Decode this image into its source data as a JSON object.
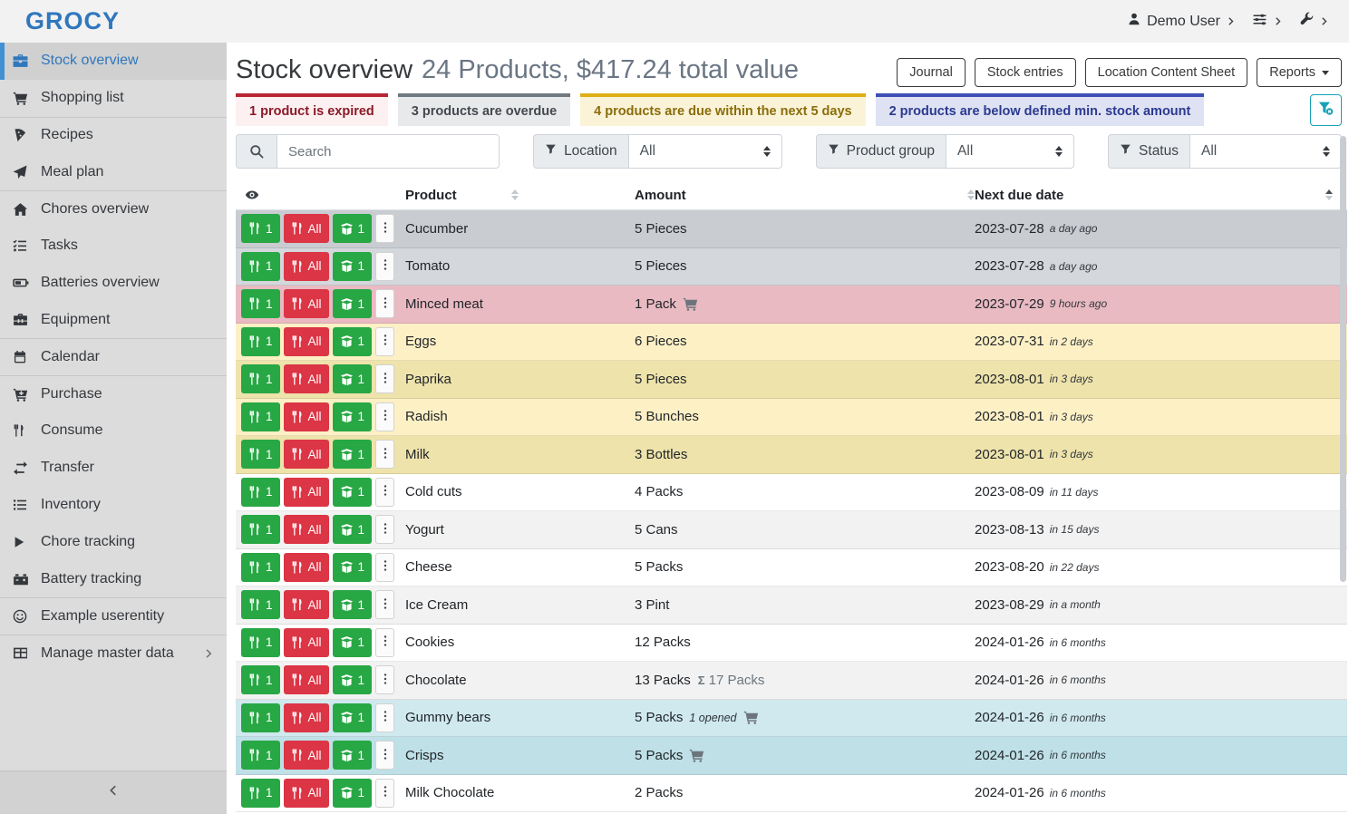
{
  "app": {
    "logo_text": "GROCY"
  },
  "topbar": {
    "user_label": "Demo User"
  },
  "sidebar": {
    "items": [
      {
        "label": "Stock overview",
        "icon": "stock-box",
        "selected": true
      },
      {
        "label": "Shopping list",
        "icon": "shopping-cart"
      },
      {
        "label": "Recipes",
        "icon": "pizza",
        "divider": true
      },
      {
        "label": "Meal plan",
        "icon": "paper-plane"
      },
      {
        "label": "Chores overview",
        "icon": "home",
        "divider": true
      },
      {
        "label": "Tasks",
        "icon": "tasks"
      },
      {
        "label": "Batteries overview",
        "icon": "battery"
      },
      {
        "label": "Equipment",
        "icon": "toolbox"
      },
      {
        "label": "Calendar",
        "icon": "calendar",
        "divider": true
      },
      {
        "label": "Purchase",
        "icon": "cart-plus",
        "divider": true
      },
      {
        "label": "Consume",
        "icon": "utensils"
      },
      {
        "label": "Transfer",
        "icon": "exchange"
      },
      {
        "label": "Inventory",
        "icon": "list"
      },
      {
        "label": "Chore tracking",
        "icon": "play"
      },
      {
        "label": "Battery tracking",
        "icon": "car-battery"
      },
      {
        "label": "Example userentity",
        "icon": "smiley",
        "divider": true
      },
      {
        "label": "Manage master data",
        "icon": "table",
        "divider": true,
        "chevron": true
      }
    ]
  },
  "header": {
    "title": "Stock overview",
    "subtitle": "24 Products, $417.24 total value",
    "buttons": [
      {
        "label": "Journal"
      },
      {
        "label": "Stock entries"
      },
      {
        "label": "Location Content Sheet"
      }
    ],
    "reports_label": "Reports"
  },
  "banners": [
    {
      "text": "1 product is expired",
      "type": "expired"
    },
    {
      "text": "3 products are overdue",
      "type": "overdue"
    },
    {
      "text": "4 products are due within the next 5 days",
      "type": "duesoon"
    },
    {
      "text": "2 products are below defined min. stock amount",
      "type": "belowmin"
    }
  ],
  "filters": {
    "search_placeholder": "Search",
    "groups": [
      {
        "label": "Location",
        "value": "All"
      },
      {
        "label": "Product group",
        "value": "All"
      },
      {
        "label": "Status",
        "value": "All"
      }
    ]
  },
  "table": {
    "columns": [
      {
        "label": "Product"
      },
      {
        "label": "Amount"
      },
      {
        "label": "Next due date"
      }
    ],
    "row_buttons": {
      "consume_one": "1",
      "consume_all": "All",
      "open_one": "1"
    },
    "rows": [
      {
        "product": "Cucumber",
        "amount": "5 Pieces",
        "due": "2023-07-28",
        "ago": "a day ago",
        "variant": "overdue-dark"
      },
      {
        "product": "Tomato",
        "amount": "5 Pieces",
        "due": "2023-07-28",
        "ago": "a day ago",
        "variant": "overdue-light"
      },
      {
        "product": "Minced meat",
        "amount": "1 Pack",
        "cart": true,
        "due": "2023-07-29",
        "ago": "9 hours ago",
        "variant": "expired"
      },
      {
        "product": "Eggs",
        "amount": "6 Pieces",
        "due": "2023-07-31",
        "ago": "in 2 days",
        "variant": "due-light"
      },
      {
        "product": "Paprika",
        "amount": "5 Pieces",
        "due": "2023-08-01",
        "ago": "in 3 days",
        "variant": "due-dark"
      },
      {
        "product": "Radish",
        "amount": "5 Bunches",
        "due": "2023-08-01",
        "ago": "in 3 days",
        "variant": "due-light"
      },
      {
        "product": "Milk",
        "amount": "3 Bottles",
        "due": "2023-08-01",
        "ago": "in 3 days",
        "variant": "due-dark"
      },
      {
        "product": "Cold cuts",
        "amount": "4 Packs",
        "due": "2023-08-09",
        "ago": "in 11 days",
        "variant": "plain"
      },
      {
        "product": "Yogurt",
        "amount": "5 Cans",
        "due": "2023-08-13",
        "ago": "in 15 days",
        "variant": "stripe"
      },
      {
        "product": "Cheese",
        "amount": "5 Packs",
        "due": "2023-08-20",
        "ago": "in 22 days",
        "variant": "plain"
      },
      {
        "product": "Ice Cream",
        "amount": "3 Pint",
        "due": "2023-08-29",
        "ago": "in a month",
        "variant": "stripe"
      },
      {
        "product": "Cookies",
        "amount": "12 Packs",
        "due": "2024-01-26",
        "ago": "in 6 months",
        "variant": "plain"
      },
      {
        "product": "Chocolate",
        "amount": "13 Packs",
        "sum": "17 Packs",
        "due": "2024-01-26",
        "ago": "in 6 months",
        "variant": "stripe"
      },
      {
        "product": "Gummy bears",
        "amount": "5 Packs",
        "opened": "1 opened",
        "cart": true,
        "due": "2024-01-26",
        "ago": "in 6 months",
        "variant": "min-light"
      },
      {
        "product": "Crisps",
        "amount": "5 Packs",
        "cart": true,
        "due": "2024-01-26",
        "ago": "in 6 months",
        "variant": "min-dark"
      },
      {
        "product": "Milk Chocolate",
        "amount": "2 Packs",
        "due": "2024-01-26",
        "ago": "in 6 months",
        "variant": "plain"
      }
    ]
  },
  "colors": {
    "accent_blue": "#3077bd",
    "button_green": "#28a745",
    "button_red": "#dc3545",
    "teal": "#17a2b8",
    "expired_border": "#b72634",
    "overdue_border": "#707880",
    "duesoon_border": "#dfae14",
    "belowmin_border": "#3e4fb4"
  }
}
